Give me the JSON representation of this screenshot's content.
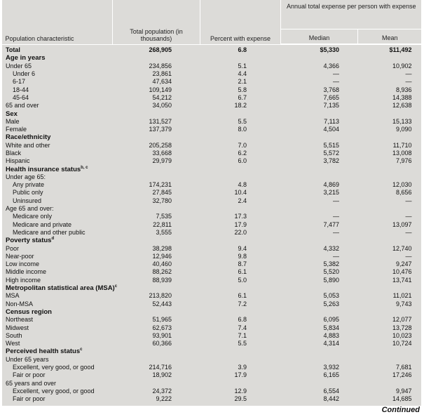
{
  "table": {
    "header": {
      "characteristic": "Population characteristic",
      "total": "Total population (in thousands)",
      "percent": "Percent with expense",
      "annual": "Annual total expense per person with expense",
      "median": "Median",
      "mean": "Mean"
    },
    "total": [
      "Total",
      "268,905",
      "6.8",
      "$5,330",
      "$11,492"
    ],
    "sections": [
      {
        "title": "Age in years",
        "rows": [
          {
            "cells": [
              "Under 65",
              "234,856",
              "5.1",
              "4,366",
              "10,902"
            ],
            "sub": [
              {
                "cells": [
                  "Under 6",
                  "23,861",
                  "4.4",
                  "—",
                  "—"
                ]
              },
              {
                "cells": [
                  "6-17",
                  "47,634",
                  "2.1",
                  "—",
                  "—"
                ]
              },
              {
                "cells": [
                  "18-44",
                  "109,149",
                  "5.8",
                  "3,768",
                  "8,936"
                ]
              },
              {
                "cells": [
                  "45-64",
                  "54,212",
                  "6.7",
                  "7,665",
                  "14,388"
                ]
              }
            ]
          },
          {
            "cells": [
              "65 and over",
              "34,050",
              "18.2",
              "7,135",
              "12,638"
            ]
          }
        ]
      },
      {
        "title": "Sex",
        "rows": [
          {
            "cells": [
              "Male",
              "131,527",
              "5.5",
              "7,113",
              "15,133"
            ]
          },
          {
            "cells": [
              "Female",
              "137,379",
              "8.0",
              "4,504",
              "9,090"
            ]
          }
        ]
      },
      {
        "title": "Race/ethnicity",
        "rows": [
          {
            "cells": [
              "White and other",
              "205,258",
              "7.0",
              "5,515",
              "11,710"
            ]
          },
          {
            "cells": [
              "Black",
              "33,668",
              "6.2",
              "5,572",
              "13,008"
            ]
          },
          {
            "cells": [
              "Hispanic",
              "29,979",
              "6.0",
              "3,782",
              "7,976"
            ]
          }
        ]
      },
      {
        "title": "Health insurance status",
        "note": "b, c",
        "rows": [
          {
            "cells": [
              "Under age 65:"
            ],
            "sub": [
              {
                "cells": [
                  "Any private",
                  "174,231",
                  "4.8",
                  "4,869",
                  "12,030"
                ]
              },
              {
                "cells": [
                  "Public only",
                  "27,845",
                  "10.4",
                  "3,215",
                  "8,656"
                ]
              },
              {
                "cells": [
                  "Uninsured",
                  "32,780",
                  "2.4",
                  "—",
                  "—"
                ]
              }
            ]
          },
          {
            "cells": [
              "Age 65 and over:"
            ],
            "sub": [
              {
                "cells": [
                  "Medicare only",
                  "7,535",
                  "17.3",
                  "—",
                  "—"
                ]
              },
              {
                "cells": [
                  "Medicare and private",
                  "22,811",
                  "17.9",
                  "7,477",
                  "13,097"
                ]
              },
              {
                "cells": [
                  "Medicare and other public",
                  "3,555",
                  "22.0",
                  "—",
                  "—"
                ]
              }
            ]
          }
        ]
      },
      {
        "title": "Poverty status",
        "note": "d",
        "rows": [
          {
            "cells": [
              "Poor",
              "38,298",
              "9.4",
              "4,332",
              "12,740"
            ]
          },
          {
            "cells": [
              "Near-poor",
              "12,946",
              "9.8",
              "—",
              "—"
            ]
          },
          {
            "cells": [
              "Low income",
              "40,460",
              "8.7",
              "5,382",
              "9,247"
            ]
          },
          {
            "cells": [
              "Middle income",
              "88,262",
              "6.1",
              "5,520",
              "10,476"
            ]
          },
          {
            "cells": [
              "High income",
              "88,939",
              "5.0",
              "5,890",
              "13,741"
            ]
          }
        ]
      },
      {
        "title": "Metropolitan statistical area (MSA)",
        "note": "c",
        "rows": [
          {
            "cells": [
              "MSA",
              "213,820",
              "6.1",
              "5,053",
              "11,021"
            ]
          },
          {
            "cells": [
              "Non-MSA",
              "52,443",
              "7.2",
              "5,263",
              "9,743"
            ]
          }
        ]
      },
      {
        "title": "Census region",
        "rows": [
          {
            "cells": [
              "Northeast",
              "51,965",
              "6.8",
              "6,095",
              "12,077"
            ]
          },
          {
            "cells": [
              "Midwest",
              "62,673",
              "7.4",
              "5,834",
              "13,728"
            ]
          },
          {
            "cells": [
              "South",
              "93,901",
              "7.1",
              "4,883",
              "10,023"
            ]
          },
          {
            "cells": [
              "West",
              "60,366",
              "5.5",
              "4,314",
              "10,724"
            ]
          }
        ]
      },
      {
        "title": "Perceived health status",
        "note": "c",
        "rows": [
          {
            "cells": [
              "Under 65 years"
            ],
            "sub": [
              {
                "cells": [
                  "Excellent, very good, or good",
                  "214,716",
                  "3.9",
                  "3,932",
                  "7,681"
                ]
              },
              {
                "cells": [
                  "Fair or poor",
                  "18,902",
                  "17.9",
                  "6,165",
                  "17,246"
                ]
              }
            ]
          },
          {
            "cells": [
              "65 years and over"
            ],
            "sub": [
              {
                "cells": [
                  "Excellent, very good, or good",
                  "24,372",
                  "12.9",
                  "6,554",
                  "9,947"
                ]
              },
              {
                "cells": [
                  "Fair or poor",
                  "9,222",
                  "29.5",
                  "8,442",
                  "14,685"
                ]
              }
            ]
          }
        ]
      }
    ],
    "footer": "Continued"
  }
}
